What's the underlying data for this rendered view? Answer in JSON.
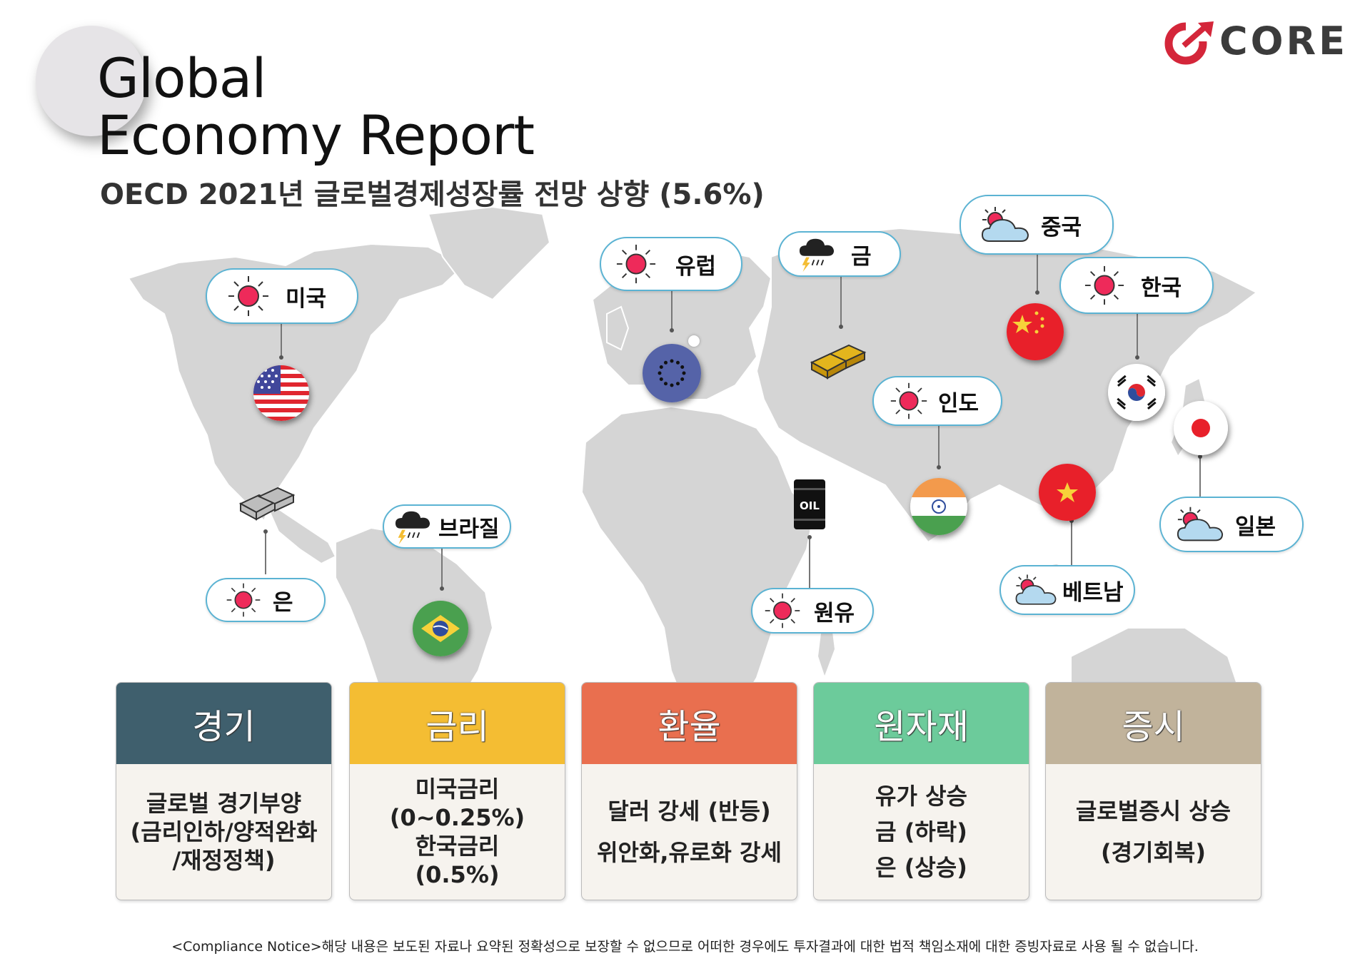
{
  "header": {
    "title_line1": "Global",
    "title_line2": "Economy Report",
    "subtitle": "OECD 2021년 글로벌경제성장률 전망 상향 (5.6%)"
  },
  "logo": {
    "text": "CORE",
    "accent_color": "#d4263a",
    "text_color": "#3b3b3b"
  },
  "regions": [
    {
      "key": "usa",
      "label": "미국",
      "weather": "sunny-icon"
    },
    {
      "key": "silver",
      "label": "은",
      "weather": "sunny-icon"
    },
    {
      "key": "brazil",
      "label": "브라질",
      "weather": "storm-icon"
    },
    {
      "key": "europe",
      "label": "유럽",
      "weather": "sunny-icon"
    },
    {
      "key": "gold",
      "label": "금",
      "weather": "storm-icon"
    },
    {
      "key": "oil",
      "label": "원유",
      "weather": "sunny-icon"
    },
    {
      "key": "china",
      "label": "중국",
      "weather": "partly-cloudy-icon"
    },
    {
      "key": "korea",
      "label": "한국",
      "weather": "sunny-icon"
    },
    {
      "key": "india",
      "label": "인도",
      "weather": "sunny-icon"
    },
    {
      "key": "japan",
      "label": "일본",
      "weather": "partly-cloudy-icon"
    },
    {
      "key": "vietnam",
      "label": "베트남",
      "weather": "partly-cloudy-icon"
    }
  ],
  "oil_label": "OIL",
  "cards": [
    {
      "title": "경기",
      "color": "#3f5f6d",
      "lines": [
        "글로벌 경기부양",
        "(금리인하/양적완화",
        "/재정정책)"
      ]
    },
    {
      "title": "금리",
      "color": "#f4bd33",
      "lines": [
        "미국금리",
        "(0~0.25%)",
        "한국금리",
        "(0.5%)"
      ]
    },
    {
      "title": "환율",
      "color": "#e96f4f",
      "lines": [
        "달러 강세 (반등)",
        "위안화,유로화 강세"
      ]
    },
    {
      "title": "원자재",
      "color": "#6ccb9b",
      "lines": [
        "유가 상승",
        "금 (하락)",
        "은 (상승)"
      ]
    },
    {
      "title": "증시",
      "color": "#c1b39b",
      "lines": [
        "글로벌증시 상승",
        "(경기회복)"
      ]
    }
  ],
  "notice": "<Compliance Notice>해당 내용은 보도된 자료나 요약된 정확성으로 보장할 수 없으므로 어떠한 경우에도 투자결과에 대한 법적 책임소재에 대한 증빙자료로 사용 될 수 없습니다."
}
